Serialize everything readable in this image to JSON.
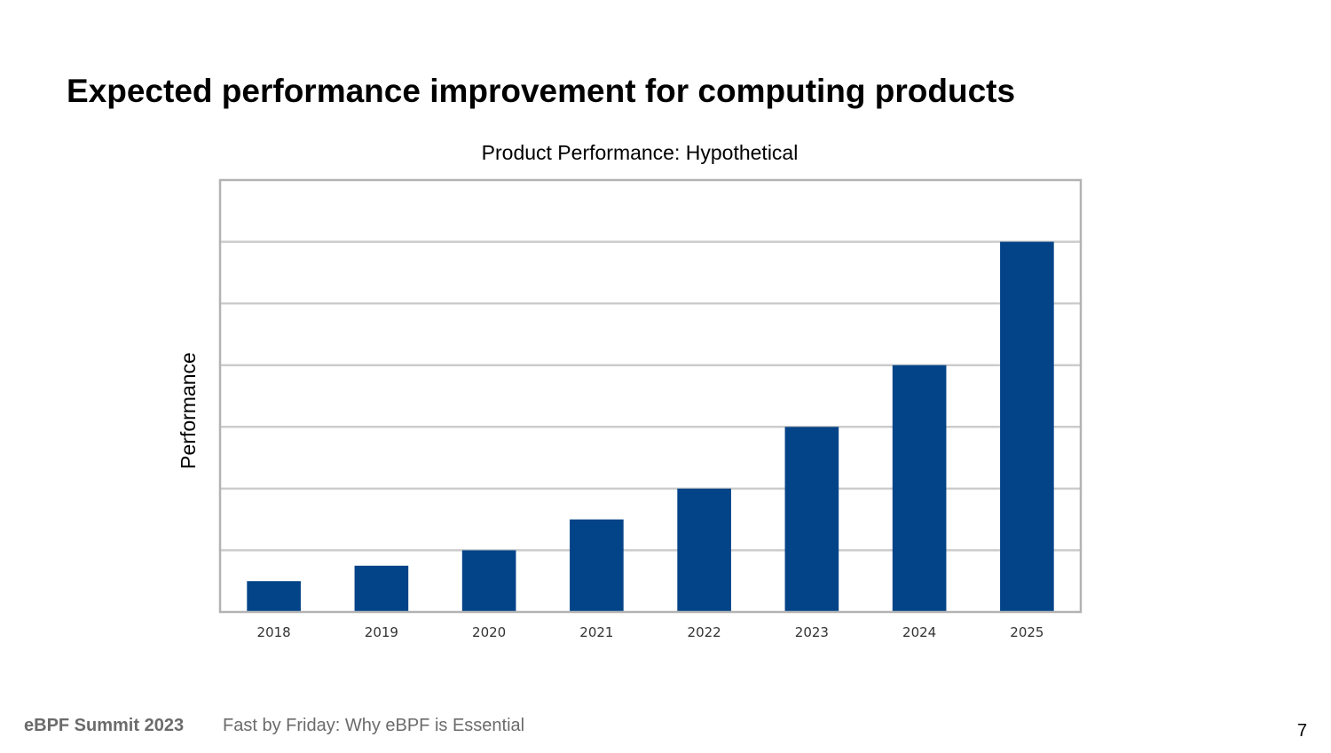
{
  "slide": {
    "title": "Expected performance improvement for computing products",
    "footer_event": "eBPF Summit 2023",
    "footer_talk": "Fast by Friday: Why eBPF is Essential",
    "page_number": "7"
  },
  "chart_data": {
    "type": "bar",
    "title": "Product Performance: Hypothetical",
    "xlabel": "",
    "ylabel": "Performance",
    "categories": [
      "2018",
      "2019",
      "2020",
      "2021",
      "2022",
      "2023",
      "2024",
      "2025"
    ],
    "values": [
      0.5,
      0.75,
      1,
      1.5,
      2,
      3,
      4,
      6
    ],
    "ylim": [
      0,
      7
    ],
    "grid": true,
    "legend": "none",
    "colors": {
      "bar": "#034488",
      "grid": "#cccccc",
      "frame": "#b3b3b3",
      "tick_label": "#333333"
    }
  }
}
